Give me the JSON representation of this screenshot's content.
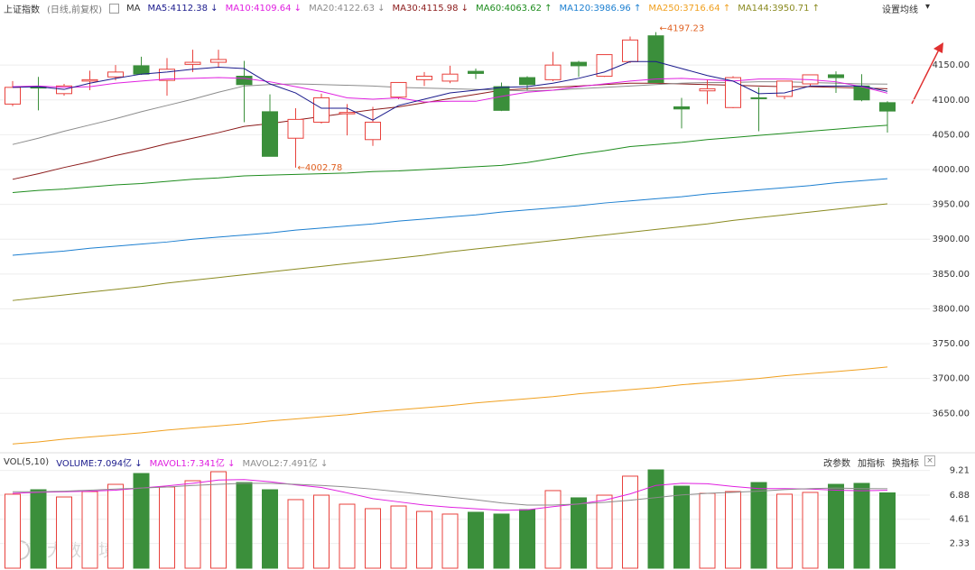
{
  "chart_data": [
    {
      "type": "candlestick",
      "title": "上证指数",
      "subtitle": "(日线,前复权)",
      "ma_label": "MA",
      "settings_label": "设置均线",
      "up_color": "#e8413c",
      "down_color": "#3b8f3b",
      "open": [
        4094,
        4119,
        4109,
        4127,
        4133,
        4149,
        4128,
        4151,
        4154,
        4134,
        4083,
        4045,
        4068,
        4080,
        4043,
        4104,
        4129,
        4127,
        4141,
        4119,
        4132,
        4129,
        4154,
        4134,
        4155,
        4192,
        4090,
        4113,
        4089,
        4103,
        4105,
        4123,
        4136,
        4120,
        4096
      ],
      "high": [
        4127,
        4133,
        4123,
        4142,
        4150,
        4162,
        4160,
        4172,
        4172,
        4156,
        4108,
        4088,
        4109,
        4094,
        4090,
        4125,
        4140,
        4149,
        4145,
        4125,
        4134,
        4169,
        4156,
        4165,
        4191,
        4197.23,
        4103,
        4129,
        4134,
        4118,
        4127,
        4136,
        4141,
        4137,
        4098
      ],
      "low": [
        4091,
        4085,
        4106,
        4114,
        4128,
        4136,
        4106,
        4140,
        4147,
        4068,
        4019,
        4002.78,
        4066,
        4049,
        4034,
        4101,
        4120,
        4124,
        4130,
        4084,
        4114,
        4127,
        4133,
        4133,
        4153,
        4125,
        4059,
        4094,
        4088,
        4055,
        4101,
        4119,
        4110,
        4098,
        4053
      ],
      "close": [
        4118,
        4117,
        4120,
        4129,
        4140,
        4137,
        4144,
        4154,
        4158,
        4122,
        4019,
        4072,
        4103,
        4082,
        4068,
        4125,
        4134,
        4137,
        4138,
        4085,
        4122,
        4150,
        4149,
        4165,
        4186,
        4125,
        4087,
        4116,
        4132,
        4102,
        4127,
        4136,
        4132,
        4100,
        4084
      ],
      "lines": [
        {
          "name": "MA250:3716.64 ↑",
          "color": "#f0a020",
          "values": [
            3606,
            3609,
            3613,
            3616,
            3619,
            3622,
            3626,
            3629,
            3632,
            3635,
            3639,
            3642,
            3645,
            3648,
            3652,
            3655,
            3658,
            3661,
            3665,
            3668,
            3671,
            3674,
            3678,
            3681,
            3684,
            3687,
            3691,
            3694,
            3697,
            3700,
            3704,
            3707,
            3710,
            3713,
            3716.64
          ]
        },
        {
          "name": "MA144:3950.71 ↑",
          "color": "#8a8a20",
          "values": [
            3812,
            3816,
            3820,
            3824,
            3828,
            3832,
            3837,
            3841,
            3845,
            3849,
            3853,
            3857,
            3861,
            3865,
            3869,
            3873,
            3877,
            3882,
            3886,
            3890,
            3894,
            3898,
            3902,
            3906,
            3910,
            3914,
            3918,
            3922,
            3927,
            3931,
            3935,
            3939,
            3943,
            3947,
            3950.71
          ]
        },
        {
          "name": "MA120:3986.96 ↑",
          "color": "#1c7fd0",
          "values": [
            3877,
            3880,
            3883,
            3887,
            3890,
            3893,
            3896,
            3900,
            3903,
            3906,
            3909,
            3913,
            3916,
            3919,
            3922,
            3926,
            3929,
            3932,
            3935,
            3939,
            3942,
            3945,
            3948,
            3952,
            3955,
            3958,
            3961,
            3965,
            3968,
            3971,
            3974,
            3977,
            3981,
            3984,
            3986.96
          ]
        },
        {
          "name": "MA60:4063.62 ↑",
          "color": "#1e8c1e",
          "values": [
            3967,
            3970,
            3972,
            3975,
            3978,
            3980,
            3983,
            3986,
            3988,
            3991,
            3992,
            3993,
            3994,
            3995,
            3997,
            3998,
            4000,
            4002,
            4004,
            4006,
            4010,
            4016,
            4022,
            4027,
            4033,
            4036,
            4039,
            4043,
            4046,
            4049,
            4052,
            4055,
            4058,
            4061,
            4063.62
          ]
        },
        {
          "name": "MA30:4115.98 ↓",
          "color": "#8b1a1a",
          "values": [
            3986,
            3994,
            4003,
            4011,
            4020,
            4028,
            4037,
            4045,
            4053,
            4062,
            4066,
            4071,
            4076,
            4081,
            4086,
            4090,
            4096,
            4102,
            4108,
            4114,
            4116,
            4118,
            4120,
            4122,
            4124,
            4124,
            4123,
            4122,
            4121,
            4120,
            4119,
            4119,
            4118,
            4117,
            4115.98
          ]
        },
        {
          "name": "MA20:4122.63 ↓",
          "color": "#8c8c8c",
          "values": [
            4036,
            4045,
            4055,
            4064,
            4073,
            4083,
            4092,
            4101,
            4111,
            4120,
            4122,
            4123,
            4122,
            4121,
            4120,
            4118,
            4117,
            4116,
            4115,
            4114,
            4113,
            4114,
            4116,
            4118,
            4120,
            4122,
            4124,
            4125,
            4125,
            4126,
            4126,
            4125,
            4124,
            4123,
            4122.63
          ]
        },
        {
          "name": "MA10:4109.64 ↓",
          "color": "#e020e0",
          "values": [
            4119,
            4120,
            4118,
            4119,
            4124,
            4127,
            4130,
            4131,
            4132,
            4131,
            4126,
            4119,
            4112,
            4103,
            4101,
            4103,
            4097,
            4098,
            4098,
            4105,
            4111,
            4114,
            4119,
            4123,
            4127,
            4130,
            4131,
            4129,
            4127,
            4130,
            4130,
            4129,
            4126,
            4119,
            4109.64
          ]
        },
        {
          "name": "MA5:4112.38 ↓",
          "color": "#1a1a8c",
          "values": [
            4118,
            4119,
            4115,
            4124,
            4131,
            4137,
            4140,
            4144,
            4147,
            4145,
            4123,
            4110,
            4088,
            4088,
            4071,
            4092,
            4101,
            4110,
            4114,
            4118,
            4119,
            4124,
            4131,
            4140,
            4155,
            4155,
            4145,
            4135,
            4127,
            4109,
            4110,
            4120,
            4120,
            4120,
            4112.38
          ]
        }
      ],
      "legend_order": [
        "MA5:4112.38 ↓",
        "MA10:4109.64 ↓",
        "MA20:4122.63 ↓",
        "MA30:4115.98 ↓",
        "MA60:4063.62 ↑",
        "MA120:3986.96 ↑",
        "MA250:3716.64 ↑",
        "MA144:3950.71 ↑"
      ],
      "annotations": [
        {
          "text": "←4197.23"
        },
        {
          "text": "←4002.78"
        }
      ],
      "ylim": [
        3596,
        4224
      ],
      "yticks": [
        {
          "value": 4150,
          "label": "4150.00"
        },
        {
          "value": 4100,
          "label": "4100.00"
        },
        {
          "value": 4050,
          "label": "4050.00"
        },
        {
          "value": 4000,
          "label": "4000.00"
        },
        {
          "value": 3950,
          "label": "3950.00"
        },
        {
          "value": 3900,
          "label": "3900.00"
        },
        {
          "value": 3850,
          "label": "3850.00"
        },
        {
          "value": 3800,
          "label": "3800.00"
        },
        {
          "value": 3750,
          "label": "3750.00"
        },
        {
          "value": 3700,
          "label": "3700.00"
        },
        {
          "value": 3650,
          "label": "3650.00"
        }
      ],
      "grid": true
    },
    {
      "type": "bar",
      "title": "VOL(5,10)",
      "buttons": [
        "改参数",
        "加指标",
        "换指标"
      ],
      "watermark": "大数跨境",
      "series": [
        {
          "name": "VOLUME:7.094亿 ↓",
          "color": "#1a1a8c",
          "values": [
            6.97,
            7.39,
            6.71,
            7.22,
            7.9,
            8.92,
            7.65,
            8.24,
            9.09,
            8.07,
            7.39,
            6.46,
            6.88,
            6.03,
            5.61,
            5.86,
            5.35,
            5.1,
            5.27,
            5.1,
            5.52,
            7.31,
            6.63,
            6.88,
            8.67,
            9.26,
            7.73,
            7.05,
            7.22,
            8.07,
            6.97,
            7.14,
            7.9,
            7.99,
            7.094
          ]
        }
      ],
      "lines": [
        {
          "name": "MAVOL1:7.341亿 ↓",
          "color": "#e020e0",
          "values": [
            7.05,
            7.15,
            7.2,
            7.25,
            7.35,
            7.55,
            7.75,
            8.0,
            8.3,
            8.35,
            8.15,
            7.85,
            7.6,
            7.1,
            6.55,
            6.25,
            5.95,
            5.75,
            5.6,
            5.45,
            5.5,
            5.8,
            6.05,
            6.4,
            7.0,
            7.8,
            8.0,
            7.95,
            7.7,
            7.5,
            7.5,
            7.45,
            7.35,
            7.3,
            7.341
          ]
        },
        {
          "name": "MAVOL2:7.491亿 ↓",
          "color": "#8c8c8c",
          "values": [
            7.2,
            7.2,
            7.25,
            7.35,
            7.45,
            7.55,
            7.65,
            7.8,
            7.9,
            8.0,
            8.0,
            7.9,
            7.8,
            7.65,
            7.45,
            7.2,
            6.95,
            6.7,
            6.45,
            6.15,
            5.95,
            5.95,
            6.05,
            6.2,
            6.4,
            6.65,
            6.9,
            7.05,
            7.15,
            7.25,
            7.4,
            7.5,
            7.55,
            7.5,
            7.491
          ]
        }
      ],
      "ylim": [
        0,
        10.62
      ],
      "yticks": [
        9.21,
        6.88,
        4.61,
        2.33
      ]
    }
  ]
}
